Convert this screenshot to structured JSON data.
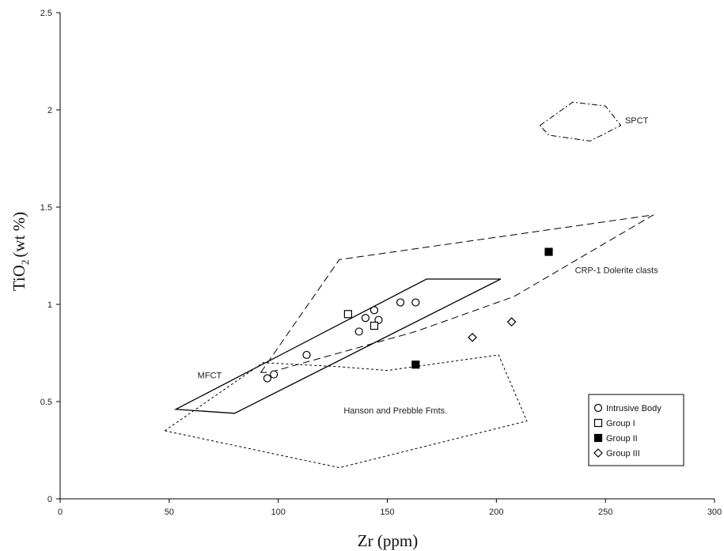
{
  "chart_data": {
    "type": "scatter",
    "xlabel": "Zr (ppm)",
    "ylabel_main": "TiO",
    "ylabel_sub": "2",
    "ylabel_rest": "(wt %)",
    "xlim": [
      0,
      300
    ],
    "ylim": [
      0,
      2.5
    ],
    "xticks": [
      0,
      50,
      100,
      150,
      200,
      250,
      300
    ],
    "yticks": [
      0,
      0.5,
      1,
      1.5,
      2,
      2.5
    ],
    "ytick_labels": [
      "0",
      "0.5",
      "1",
      "1.5",
      "2",
      "2.5"
    ],
    "grid": false,
    "legend_position": "bottom-right",
    "series": [
      {
        "name": "Intrusive Body",
        "marker": "circle-open",
        "x": [
          95,
          98,
          113,
          137,
          140,
          144,
          144,
          146,
          156,
          163
        ],
        "y": [
          0.62,
          0.64,
          0.74,
          0.86,
          0.93,
          0.97,
          0.89,
          0.92,
          1.01,
          1.01
        ]
      },
      {
        "name": "Group I",
        "marker": "square-open",
        "x": [
          132,
          144
        ],
        "y": [
          0.95,
          0.89
        ]
      },
      {
        "name": "Group II",
        "marker": "square-filled",
        "x": [
          163,
          224
        ],
        "y": [
          0.69,
          1.27
        ]
      },
      {
        "name": "Group III",
        "marker": "diamond-open",
        "x": [
          189,
          207
        ],
        "y": [
          0.83,
          0.91
        ]
      }
    ],
    "regions": [
      {
        "name": "SPCT",
        "style": "dash-dot",
        "points": [
          [
            220,
            1.92
          ],
          [
            235,
            2.04
          ],
          [
            250,
            2.02
          ],
          [
            257,
            1.92
          ],
          [
            243,
            1.84
          ],
          [
            224,
            1.87
          ]
        ],
        "label_at": [
          259,
          1.93
        ]
      },
      {
        "name": "CRP-1 Dolerite clasts",
        "style": "dashed",
        "points": [
          [
            92,
            0.65
          ],
          [
            128,
            1.23
          ],
          [
            272,
            1.46
          ],
          [
            208,
            1.04
          ],
          [
            163,
            0.86
          ],
          [
            96,
            0.65
          ]
        ],
        "label_at": [
          236,
          1.16
        ]
      },
      {
        "name": "MFCT",
        "style": "solid",
        "points": [
          [
            53,
            0.46
          ],
          [
            168,
            1.13
          ],
          [
            202,
            1.13
          ],
          [
            80,
            0.44
          ]
        ],
        "label_at": [
          63,
          0.62
        ]
      },
      {
        "name": "Hanson and Prebble Fmts.",
        "style": "dotted",
        "points": [
          [
            48,
            0.35
          ],
          [
            93,
            0.7
          ],
          [
            127,
            0.68
          ],
          [
            150,
            0.66
          ],
          [
            201,
            0.74
          ],
          [
            214,
            0.4
          ],
          [
            128,
            0.16
          ]
        ],
        "label_at": [
          130,
          0.44
        ]
      }
    ]
  }
}
